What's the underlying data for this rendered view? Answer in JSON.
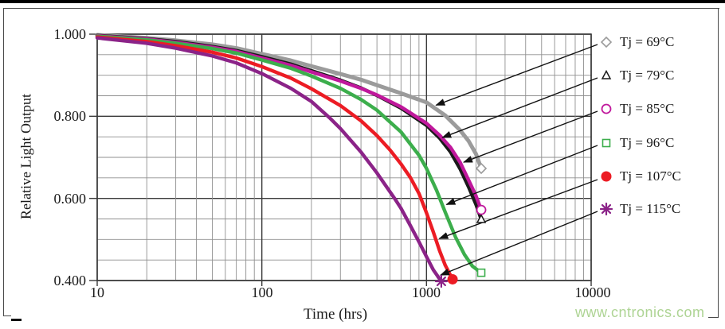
{
  "figure": {
    "y_axis": {
      "title": "Relative Light Output",
      "ticks": [
        "1.000",
        "0.800",
        "0.600",
        "0.400"
      ],
      "min": 0.4,
      "max": 1.0,
      "minor_step": 0.05
    },
    "x_axis": {
      "title": "Time (hrs)",
      "ticks": [
        "10",
        "100",
        "1000",
        "10000"
      ],
      "scale": "log",
      "min": 10,
      "max": 10000
    },
    "watermark": "www.cntronics.com"
  },
  "chart_data": {
    "type": "line",
    "xlabel": "Time (hrs)",
    "ylabel": "Relative Light Output",
    "x_scale": "log",
    "xlim": [
      10,
      10000
    ],
    "ylim": [
      0.4,
      1.0
    ],
    "y_minor_step": 0.05,
    "grid": "major+minor",
    "legend_position": "right-outside",
    "series": [
      {
        "name": "Tj = 69°C",
        "color": "#9b9b9b",
        "marker": "open-diamond",
        "points": [
          [
            10,
            0.998
          ],
          [
            20,
            0.991
          ],
          [
            30,
            0.985
          ],
          [
            50,
            0.975
          ],
          [
            70,
            0.966
          ],
          [
            100,
            0.952
          ],
          [
            150,
            0.936
          ],
          [
            200,
            0.922
          ],
          [
            300,
            0.903
          ],
          [
            400,
            0.889
          ],
          [
            500,
            0.876
          ],
          [
            700,
            0.856
          ],
          [
            1000,
            0.834
          ],
          [
            1300,
            0.802
          ],
          [
            1600,
            0.766
          ],
          [
            1800,
            0.74
          ],
          [
            2000,
            0.708
          ],
          [
            2150,
            0.673
          ]
        ],
        "arrow_target": [
          1080,
          0.827
        ]
      },
      {
        "name": "Tj = 79°C",
        "color": "#1a1a1a",
        "marker": "open-triangle",
        "points": [
          [
            10,
            0.997
          ],
          [
            20,
            0.989
          ],
          [
            30,
            0.982
          ],
          [
            50,
            0.97
          ],
          [
            70,
            0.96
          ],
          [
            100,
            0.945
          ],
          [
            150,
            0.927
          ],
          [
            200,
            0.911
          ],
          [
            300,
            0.888
          ],
          [
            400,
            0.869
          ],
          [
            500,
            0.851
          ],
          [
            700,
            0.82
          ],
          [
            1000,
            0.778
          ],
          [
            1200,
            0.747
          ],
          [
            1400,
            0.713
          ],
          [
            1600,
            0.672
          ],
          [
            1800,
            0.628
          ],
          [
            2000,
            0.585
          ],
          [
            2150,
            0.549
          ]
        ],
        "arrow_target": [
          1180,
          0.748
        ]
      },
      {
        "name": "Tj = 85°C",
        "color": "#c0189c",
        "marker": "open-circle",
        "points": [
          [
            10,
            0.996
          ],
          [
            20,
            0.988
          ],
          [
            30,
            0.98
          ],
          [
            50,
            0.968
          ],
          [
            70,
            0.958
          ],
          [
            100,
            0.942
          ],
          [
            150,
            0.924
          ],
          [
            200,
            0.908
          ],
          [
            300,
            0.886
          ],
          [
            400,
            0.868
          ],
          [
            500,
            0.852
          ],
          [
            700,
            0.823
          ],
          [
            1000,
            0.783
          ],
          [
            1200,
            0.754
          ],
          [
            1400,
            0.724
          ],
          [
            1600,
            0.688
          ],
          [
            1800,
            0.645
          ],
          [
            2000,
            0.606
          ],
          [
            2150,
            0.572
          ]
        ],
        "arrow_target": [
          1590,
          0.688
        ]
      },
      {
        "name": "Tj = 96°C",
        "color": "#3cae4c",
        "marker": "open-square",
        "points": [
          [
            10,
            0.995
          ],
          [
            20,
            0.986
          ],
          [
            30,
            0.978
          ],
          [
            50,
            0.965
          ],
          [
            70,
            0.954
          ],
          [
            100,
            0.937
          ],
          [
            150,
            0.917
          ],
          [
            200,
            0.898
          ],
          [
            300,
            0.868
          ],
          [
            400,
            0.841
          ],
          [
            500,
            0.815
          ],
          [
            700,
            0.762
          ],
          [
            900,
            0.705
          ],
          [
            1000,
            0.673
          ],
          [
            1150,
            0.62
          ],
          [
            1300,
            0.566
          ],
          [
            1500,
            0.506
          ],
          [
            1700,
            0.463
          ],
          [
            1900,
            0.435
          ],
          [
            2150,
            0.419
          ]
        ],
        "arrow_target": [
          1250,
          0.585
        ]
      },
      {
        "name": "Tj = 107°C",
        "color": "#ec1c24",
        "marker": "filled-circle",
        "points": [
          [
            10,
            0.993
          ],
          [
            20,
            0.982
          ],
          [
            30,
            0.972
          ],
          [
            50,
            0.956
          ],
          [
            70,
            0.942
          ],
          [
            100,
            0.921
          ],
          [
            150,
            0.893
          ],
          [
            200,
            0.867
          ],
          [
            300,
            0.826
          ],
          [
            400,
            0.789
          ],
          [
            500,
            0.753
          ],
          [
            600,
            0.718
          ],
          [
            700,
            0.684
          ],
          [
            800,
            0.65
          ],
          [
            900,
            0.612
          ],
          [
            1000,
            0.565
          ],
          [
            1100,
            0.518
          ],
          [
            1200,
            0.473
          ],
          [
            1300,
            0.437
          ],
          [
            1440,
            0.403
          ]
        ],
        "arrow_target": [
          1130,
          0.502
        ]
      },
      {
        "name": "Tj = 115°C",
        "color": "#8b2388",
        "marker": "asterisk",
        "points": [
          [
            10,
            0.991
          ],
          [
            20,
            0.978
          ],
          [
            30,
            0.966
          ],
          [
            50,
            0.947
          ],
          [
            70,
            0.93
          ],
          [
            100,
            0.904
          ],
          [
            150,
            0.868
          ],
          [
            200,
            0.836
          ],
          [
            260,
            0.795
          ],
          [
            300,
            0.77
          ],
          [
            400,
            0.713
          ],
          [
            500,
            0.662
          ],
          [
            640,
            0.6
          ],
          [
            700,
            0.576
          ],
          [
            800,
            0.533
          ],
          [
            900,
            0.494
          ],
          [
            1000,
            0.458
          ],
          [
            1100,
            0.426
          ],
          [
            1230,
            0.398
          ]
        ],
        "arrow_target": [
          1150,
          0.413
        ]
      }
    ],
    "colors": {
      "grid_major": "#3a3a3a",
      "grid_minor": "#8f8f8f",
      "frame": "#4a4a4a",
      "arrow": "#111111"
    }
  }
}
